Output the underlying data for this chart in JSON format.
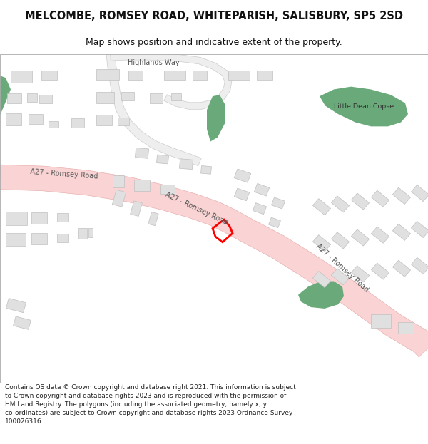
{
  "title": "MELCOMBE, ROMSEY ROAD, WHITEPARISH, SALISBURY, SP5 2SD",
  "subtitle": "Map shows position and indicative extent of the property.",
  "footer": "Contains OS data © Crown copyright and database right 2021. This information is subject to Crown copyright and database rights 2023 and is reproduced with the permission of HM Land Registry. The polygons (including the associated geometry, namely x, y co-ordinates) are subject to Crown copyright and database rights 2023 Ordnance Survey 100026316.",
  "bg_color": "#ffffff",
  "road_color": "#fad4d4",
  "road_border": "#e8b0b0",
  "building_color": "#e0e0e0",
  "building_border": "#c0c0c0",
  "green_color": "#6aaa7a",
  "highlight_color": "#ff0000",
  "sec_road_color": "#eeeeee",
  "sec_road_border": "#cccccc"
}
